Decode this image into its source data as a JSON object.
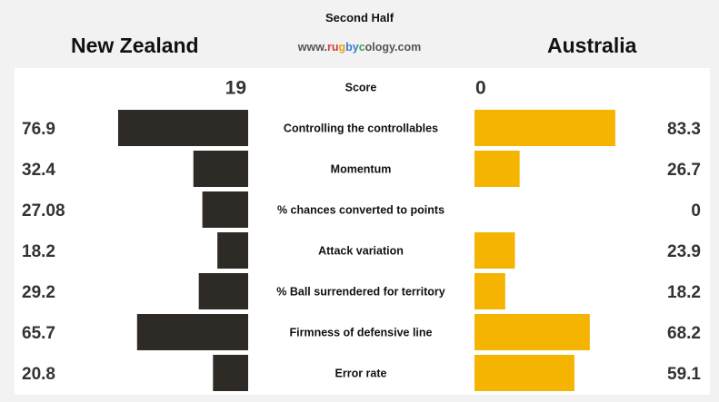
{
  "header": {
    "period": "Second Half",
    "home_team": "New Zealand",
    "away_team": "Australia",
    "site": {
      "parts": [
        "www.",
        "ru",
        "g",
        "by",
        "c",
        "ology.com"
      ]
    }
  },
  "chart_data": {
    "type": "bar",
    "orientation": "horizontal-butterfly",
    "categories": [
      "Score",
      "Controlling the controllables",
      "Momentum",
      "% chances converted to points",
      "Attack variation",
      "% Ball surrendered for territory",
      "Firmness of defensive line",
      "Error rate"
    ],
    "series": [
      {
        "name": "New Zealand",
        "color": "#2e2a26",
        "labels": [
          "19",
          "76.9",
          "32.4",
          "27.08",
          "18.2",
          "29.2",
          "65.7",
          "20.8"
        ],
        "values": [
          null,
          76.9,
          32.4,
          27.08,
          18.2,
          29.2,
          65.7,
          20.8
        ]
      },
      {
        "name": "Australia",
        "color": "#f5b400",
        "labels": [
          "0",
          "83.3",
          "26.7",
          "0",
          "23.9",
          "18.2",
          "68.2",
          "59.1"
        ],
        "values": [
          null,
          83.3,
          26.7,
          0,
          23.9,
          18.2,
          68.2,
          59.1
        ]
      }
    ],
    "xlim": [
      0,
      100
    ],
    "grid": false,
    "legend": "none"
  }
}
